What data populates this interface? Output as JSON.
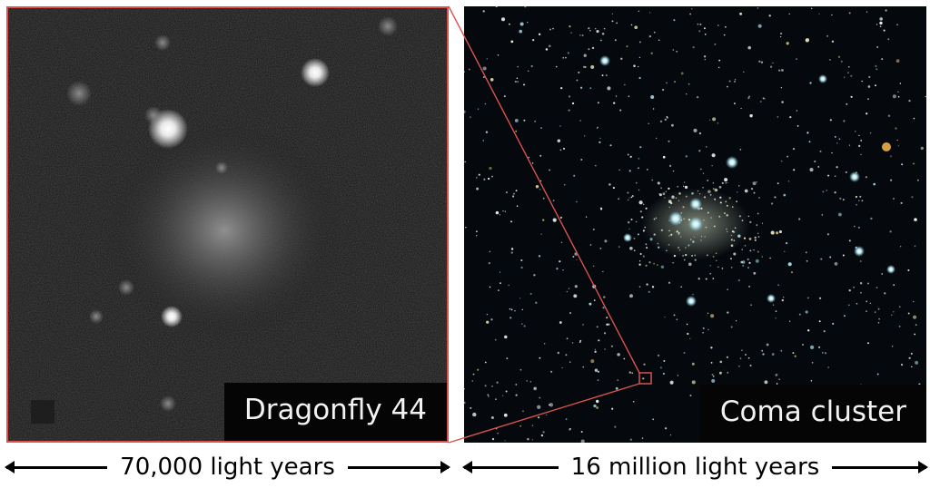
{
  "left_panel": {
    "label": "Dragonfly 44",
    "scale_label": "70,000 light years"
  },
  "right_panel": {
    "label": "Coma cluster",
    "scale_label": "16 million light years"
  },
  "colors": {
    "highlight": "#d9534f",
    "label_bg": "#050505",
    "label_text": "#f2f2f2"
  }
}
